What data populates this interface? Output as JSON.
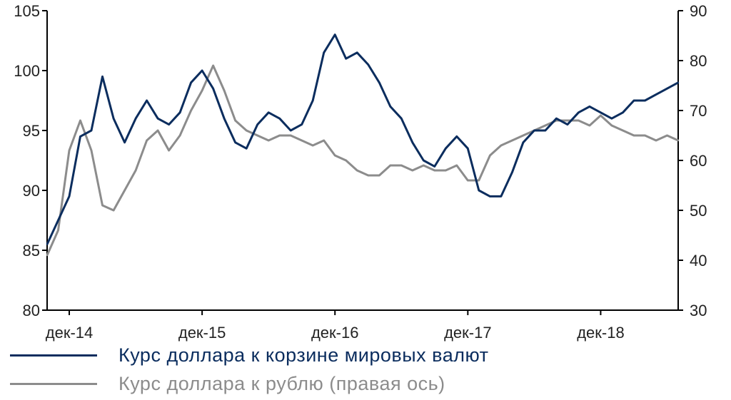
{
  "chart_data": {
    "type": "line",
    "title": "",
    "xlabel": "",
    "x_ticks": [
      "дек-14",
      "дек-15",
      "дек-16",
      "дек-17",
      "дек-18"
    ],
    "x_range": [
      "2014-10",
      "2019-07"
    ],
    "left_axis": {
      "ylim": [
        80,
        105
      ],
      "ticks": [
        "80",
        "85",
        "90",
        "95",
        "100",
        "105"
      ]
    },
    "right_axis": {
      "ylim": [
        30,
        90
      ],
      "ticks": [
        "30",
        "40",
        "50",
        "60",
        "70",
        "80",
        "90"
      ]
    },
    "grid": false,
    "legend_position": "bottom-left",
    "series": [
      {
        "name": "Курс доллара к корзине мировых валют",
        "axis": "left",
        "color": "#0b2d5e",
        "x": [
          "2014-10",
          "2014-11",
          "2014-12",
          "2015-01",
          "2015-02",
          "2015-03",
          "2015-04",
          "2015-05",
          "2015-06",
          "2015-07",
          "2015-08",
          "2015-09",
          "2015-10",
          "2015-11",
          "2015-12",
          "2016-01",
          "2016-02",
          "2016-03",
          "2016-04",
          "2016-05",
          "2016-06",
          "2016-07",
          "2016-08",
          "2016-09",
          "2016-10",
          "2016-11",
          "2016-12",
          "2017-01",
          "2017-02",
          "2017-03",
          "2017-04",
          "2017-05",
          "2017-06",
          "2017-07",
          "2017-08",
          "2017-09",
          "2017-10",
          "2017-11",
          "2017-12",
          "2018-01",
          "2018-02",
          "2018-03",
          "2018-04",
          "2018-05",
          "2018-06",
          "2018-07",
          "2018-08",
          "2018-09",
          "2018-10",
          "2018-11",
          "2018-12",
          "2019-01",
          "2019-02",
          "2019-03",
          "2019-04",
          "2019-05",
          "2019-06",
          "2019-07"
        ],
        "values": [
          85.5,
          87.5,
          89.5,
          94.5,
          95.0,
          99.5,
          96.0,
          94.0,
          96.0,
          97.5,
          96.0,
          95.5,
          96.5,
          99.0,
          100.0,
          98.5,
          96.0,
          94.0,
          93.5,
          95.5,
          96.5,
          96.0,
          95.0,
          95.5,
          97.5,
          101.5,
          103.0,
          101.0,
          101.5,
          100.5,
          99.0,
          97.0,
          96.0,
          94.0,
          92.5,
          92.0,
          93.5,
          94.5,
          93.5,
          90.0,
          89.5,
          89.5,
          91.5,
          94.0,
          95.0,
          95.0,
          96.0,
          95.5,
          96.5,
          97.0,
          96.5,
          96.0,
          96.5,
          97.5,
          97.5,
          98.0,
          98.5,
          99.0
        ]
      },
      {
        "name": "Курс доллара к рублю (правая ось)",
        "axis": "right",
        "color": "#8c8c8c",
        "x": [
          "2014-10",
          "2014-11",
          "2014-12",
          "2015-01",
          "2015-02",
          "2015-03",
          "2015-04",
          "2015-05",
          "2015-06",
          "2015-07",
          "2015-08",
          "2015-09",
          "2015-10",
          "2015-11",
          "2015-12",
          "2016-01",
          "2016-02",
          "2016-03",
          "2016-04",
          "2016-05",
          "2016-06",
          "2016-07",
          "2016-08",
          "2016-09",
          "2016-10",
          "2016-11",
          "2016-12",
          "2017-01",
          "2017-02",
          "2017-03",
          "2017-04",
          "2017-05",
          "2017-06",
          "2017-07",
          "2017-08",
          "2017-09",
          "2017-10",
          "2017-11",
          "2017-12",
          "2018-01",
          "2018-02",
          "2018-03",
          "2018-04",
          "2018-05",
          "2018-06",
          "2018-07",
          "2018-08",
          "2018-09",
          "2018-10",
          "2018-11",
          "2018-12",
          "2019-01",
          "2019-02",
          "2019-03",
          "2019-04",
          "2019-05",
          "2019-06",
          "2019-07"
        ],
        "values": [
          41,
          46,
          62,
          68,
          62,
          51,
          50,
          54,
          58,
          64,
          66,
          62,
          65,
          70,
          74,
          79,
          74,
          68,
          66,
          65,
          64,
          65,
          65,
          64,
          63,
          64,
          61,
          60,
          58,
          57,
          57,
          59,
          59,
          58,
          59,
          58,
          58,
          59,
          56,
          56,
          61,
          63,
          64,
          65,
          66,
          67,
          68,
          68,
          68,
          67,
          69,
          67,
          66,
          65,
          65,
          64,
          65,
          64
        ]
      }
    ]
  }
}
